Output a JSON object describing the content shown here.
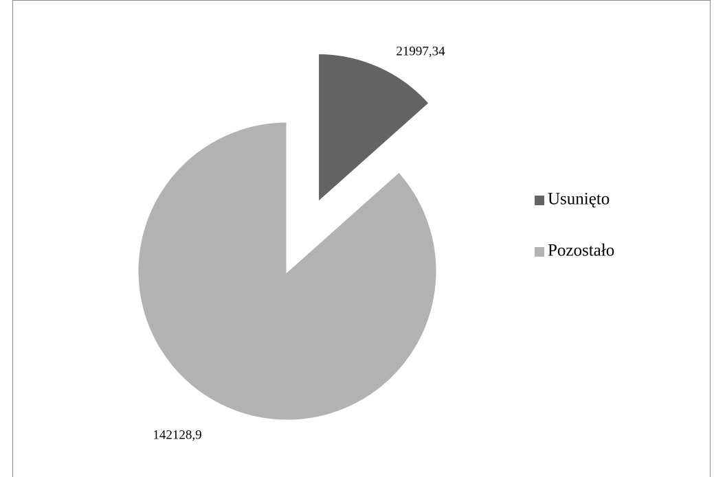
{
  "chart_data": {
    "type": "pie",
    "categories": [
      "Usunięto",
      "Pozostało"
    ],
    "values": [
      21997.34,
      142128.9
    ],
    "value_labels": [
      "21997,34",
      "142128,9"
    ],
    "colors": [
      "#636363",
      "#b2b2b2"
    ],
    "exploded": [
      true,
      false
    ],
    "legend": "right"
  }
}
